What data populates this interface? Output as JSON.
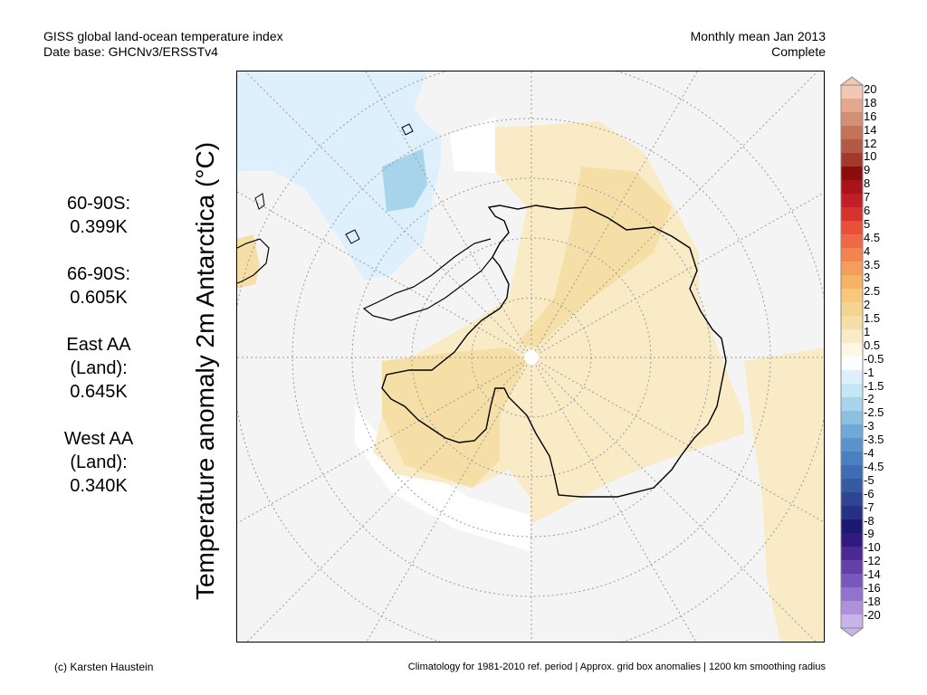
{
  "header": {
    "title_line1": "GISS global land-ocean temperature index",
    "title_line2": "Date base: GHCNv3/ERSSTv4",
    "period_line1": "Monthly mean Jan 2013",
    "period_line2": "Complete"
  },
  "stats": [
    {
      "region": "60-90S:",
      "value": "0.399K"
    },
    {
      "region": "66-90S:",
      "value": "0.605K"
    },
    {
      "region": "East AA\n(Land):",
      "value": "0.645K"
    },
    {
      "region": "West AA\n(Land):",
      "value": "0.340K"
    }
  ],
  "axis_label": "Temperature anomaly 2m Antarctica (°C)",
  "colorbar": {
    "labels": [
      "20",
      "18",
      "16",
      "14",
      "12",
      "10",
      "9",
      "8",
      "7",
      "6",
      "5",
      "4.5",
      "4",
      "3.5",
      "3",
      "2.5",
      "2",
      "1.5",
      "1",
      "0.5",
      "-0.5",
      "-1",
      "-1.5",
      "-2",
      "-2.5",
      "-3",
      "-3.5",
      "-4",
      "-4.5",
      "-5",
      "-6",
      "-7",
      "-8",
      "-9",
      "-10",
      "-12",
      "-14",
      "-16",
      "-18",
      "-20"
    ],
    "colors": [
      "#f3c7b5",
      "#e3a88d",
      "#d38f73",
      "#c27359",
      "#b35a45",
      "#a2392d",
      "#8c0b0c",
      "#a9141a",
      "#c11f25",
      "#d8322e",
      "#e8503a",
      "#ee6a45",
      "#f2844f",
      "#f59d5a",
      "#f6b366",
      "#f7c77a",
      "#f4d491",
      "#f6dfa6",
      "#f8ebc6",
      "#fdf7e3",
      "#fbfdfe",
      "#ddf0fb",
      "#c5e6f5",
      "#a8d4eb",
      "#8cc0e0",
      "#70a8d6",
      "#5b93cc",
      "#4a7fc0",
      "#3f6cb2",
      "#375ba3",
      "#2e4594",
      "#263184",
      "#1b1a70",
      "#301a7e",
      "#4a2a92",
      "#6240a8",
      "#7958bb",
      "#9273cb",
      "#ad92d9",
      "#c8b4e8"
    ]
  },
  "footer": {
    "credit": "(c) Karsten Haustein",
    "note": "Climatology for 1981-2010 ref. period | Approx. grid box anomalies | 1200 km smoothing radius"
  }
}
